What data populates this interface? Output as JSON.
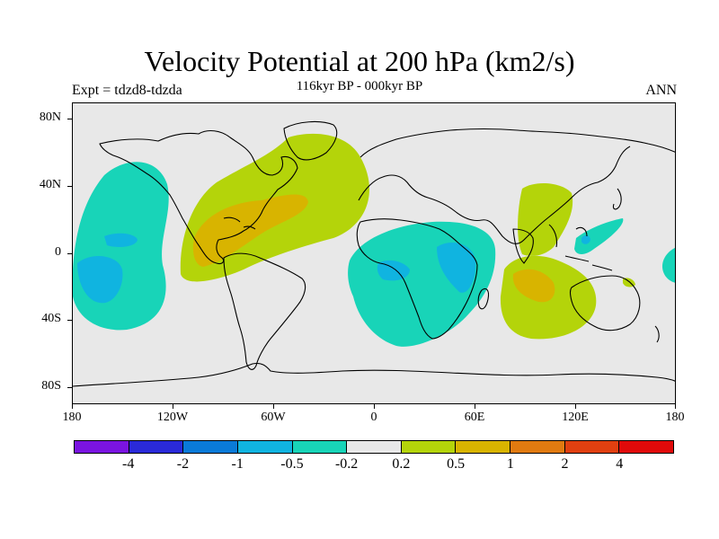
{
  "title": "Velocity Potential at 200 hPa (km2/s)",
  "subtitle": "116kyr BP - 000kyr BP",
  "left_label": "Expt = tdzd8-tdzda",
  "right_label": "ANN",
  "lat_labels": [
    "80N",
    "40N",
    "0",
    "40S",
    "80S"
  ],
  "lon_labels": [
    "180",
    "120W",
    "60W",
    "0",
    "60E",
    "120E",
    "180"
  ],
  "colorbar": {
    "colors": [
      "#7a14e0",
      "#2a2ad8",
      "#0a7ad8",
      "#10b4e0",
      "#18d4b8",
      "#e8e8e8",
      "#b4d40a",
      "#d8b400",
      "#e07a10",
      "#e04010",
      "#e00a0a"
    ],
    "labels": [
      "-4",
      "-2",
      "-1",
      "-0.5",
      "-0.2",
      "0.2",
      "0.5",
      "1",
      "2",
      "4"
    ]
  }
}
